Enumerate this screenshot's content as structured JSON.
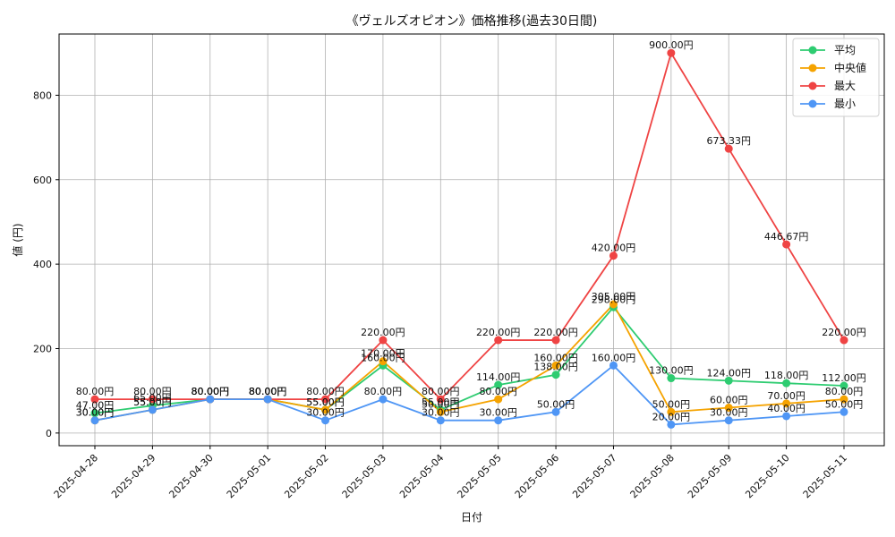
{
  "chart_data": {
    "type": "line",
    "title": "《ヴェルズオピオン》価格推移(過去30日間)",
    "xlabel": "日付",
    "ylabel": "値 (円)",
    "categories": [
      "2025-04-28",
      "2025-04-29",
      "2025-04-30",
      "2025-05-01",
      "2025-05-02",
      "2025-05-03",
      "2025-05-04",
      "2025-05-05",
      "2025-05-06",
      "2025-05-07",
      "2025-05-08",
      "2025-05-09",
      "2025-05-10",
      "2025-05-11"
    ],
    "ylim": [
      -30,
      945
    ],
    "yticks": [
      0,
      200,
      400,
      600,
      800
    ],
    "grid": true,
    "legend": "top-right",
    "label_suffix": "円",
    "series": [
      {
        "name": "平均",
        "color": "#2ecc71",
        "values": [
          47.0,
          65.0,
          80.0,
          80.0,
          55.0,
          160.0,
          55.0,
          114.0,
          138.0,
          298.0,
          130.0,
          124.0,
          118.0,
          112.0
        ]
      },
      {
        "name": "中央値",
        "color": "#f5a300",
        "values": [
          30.0,
          55.0,
          80.0,
          80.0,
          55.0,
          170.0,
          50.0,
          80.0,
          160.0,
          305.0,
          50.0,
          60.0,
          70.0,
          80.0
        ]
      },
      {
        "name": "最大",
        "color": "#ef4444",
        "values": [
          80.0,
          80.0,
          80.0,
          80.0,
          80.0,
          220.0,
          80.0,
          220.0,
          220.0,
          420.0,
          900.0,
          673.33,
          446.67,
          220.0
        ]
      },
      {
        "name": "最小",
        "color": "#4f96f5",
        "values": [
          30.0,
          55.0,
          80.0,
          80.0,
          30.0,
          80.0,
          30.0,
          30.0,
          50.0,
          160.0,
          20.0,
          30.0,
          40.0,
          50.0
        ]
      }
    ]
  }
}
